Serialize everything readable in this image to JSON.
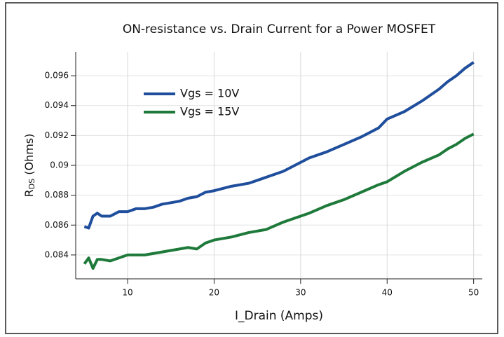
{
  "chart_data": {
    "type": "line",
    "title": "ON-resistance vs. Drain Current for a Power MOSFET",
    "xlabel": "I_Drain (Amps)",
    "ylabel": {
      "base": "R",
      "subscript": "DS",
      "unit": "(Ohms)"
    },
    "x": [
      5,
      5.5,
      6,
      6.5,
      7,
      8,
      9,
      10,
      11,
      12,
      13,
      14,
      15,
      16,
      17,
      18,
      19,
      20,
      22,
      24,
      26,
      28,
      30,
      31,
      33,
      35,
      37,
      39,
      40,
      42,
      44,
      46,
      47,
      48,
      49,
      50
    ],
    "series": [
      {
        "name": "Vgs = 10V",
        "color": "#1f4e9c",
        "values": [
          0.0859,
          0.0858,
          0.0866,
          0.0868,
          0.0866,
          0.0866,
          0.0869,
          0.0869,
          0.0871,
          0.0871,
          0.0872,
          0.0874,
          0.0875,
          0.0876,
          0.0878,
          0.0879,
          0.0882,
          0.0883,
          0.0886,
          0.0888,
          0.0892,
          0.0896,
          0.0902,
          0.0905,
          0.0909,
          0.0914,
          0.0919,
          0.0925,
          0.0931,
          0.0936,
          0.0943,
          0.0951,
          0.0956,
          0.096,
          0.0965,
          0.0969
        ]
      },
      {
        "name": "Vgs = 15V",
        "color": "#1e7a3a",
        "values": [
          0.0834,
          0.0838,
          0.0831,
          0.0837,
          0.0837,
          0.0836,
          0.0838,
          0.084,
          0.084,
          0.084,
          0.0841,
          0.0842,
          0.0843,
          0.0844,
          0.0845,
          0.0844,
          0.0848,
          0.085,
          0.0852,
          0.0855,
          0.0857,
          0.0862,
          0.0866,
          0.0868,
          0.0873,
          0.0877,
          0.0882,
          0.0887,
          0.0889,
          0.0896,
          0.0902,
          0.0907,
          0.0911,
          0.0914,
          0.0918,
          0.0921
        ]
      }
    ],
    "xlim": [
      4,
      51
    ],
    "xticks": [
      10,
      20,
      30,
      40,
      50
    ],
    "ylim": [
      0.0824,
      0.0976
    ],
    "yticks": [
      0.084,
      0.086,
      0.088,
      0.09,
      0.092,
      0.094,
      0.096
    ],
    "grid": true,
    "legend": "upper left"
  }
}
